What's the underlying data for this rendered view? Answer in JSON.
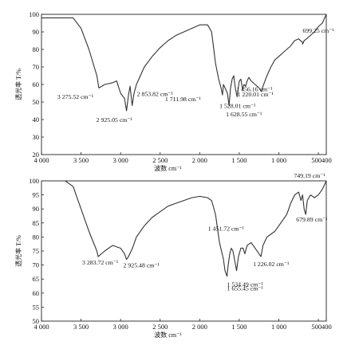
{
  "chart_data": [
    {
      "type": "line",
      "xlabel": "波数 cm⁻¹",
      "ylabel": "透光率 T/%",
      "xlim": [
        4000,
        400
      ],
      "ylim": [
        20,
        100
      ],
      "xticks": [
        4000,
        3500,
        3000,
        2500,
        2000,
        1500,
        1000,
        500,
        400
      ],
      "xtick_labels": [
        "4 000",
        "3 500",
        "3 000",
        "2 500",
        "2 000",
        "1 500",
        "1 000",
        "500",
        "400"
      ],
      "yticks": [
        20,
        30,
        40,
        50,
        60,
        70,
        80,
        90,
        100
      ],
      "series": [
        {
          "x": [
            4000,
            3700,
            3600,
            3500,
            3400,
            3300,
            3275,
            3200,
            3100,
            3050,
            3000,
            2950,
            2925,
            2900,
            2880,
            2854,
            2830,
            2800,
            2700,
            2600,
            2500,
            2400,
            2300,
            2200,
            2100,
            2000,
            1950,
            1900,
            1850,
            1800,
            1760,
            1730,
            1712,
            1700,
            1680,
            1650,
            1629,
            1610,
            1590,
            1570,
            1550,
            1528,
            1500,
            1480,
            1457,
            1440,
            1420,
            1400,
            1380,
            1350,
            1300,
            1250,
            1220,
            1200,
            1150,
            1100,
            1050,
            1000,
            950,
            900,
            850,
            800,
            750,
            700,
            699,
            680,
            650,
            600,
            550,
            500,
            450,
            400
          ],
          "y": [
            98,
            98,
            98,
            92,
            80,
            65,
            58,
            60,
            61,
            62,
            55,
            52,
            45,
            54,
            59,
            48,
            55,
            60,
            70,
            76,
            81,
            85,
            88,
            90,
            92,
            94,
            94,
            94,
            90,
            72,
            63,
            58,
            54,
            60,
            58,
            55,
            48,
            58,
            63,
            65,
            58,
            53,
            62,
            63,
            57,
            60,
            59,
            62,
            64,
            62,
            60,
            58,
            56,
            59,
            65,
            70,
            74,
            76,
            78,
            80,
            82,
            85,
            86,
            84,
            83,
            85,
            86,
            88,
            90,
            93,
            95,
            100
          ]
        }
      ],
      "annotations": [
        {
          "x": 3275.52,
          "text": "3 275.52 cm⁻¹"
        },
        {
          "x": 2925.05,
          "text": "2 925.05 cm⁻¹"
        },
        {
          "x": 2853.82,
          "text": "2 853.82 cm⁻¹"
        },
        {
          "x": 1711.98,
          "text": "1 711.98 cm⁻¹"
        },
        {
          "x": 1628.55,
          "text": "1 628.55 cm⁻¹"
        },
        {
          "x": 1528.01,
          "text": "1 528.01 cm⁻¹"
        },
        {
          "x": 1456.16,
          "text": "1 456.16 cm⁻¹"
        },
        {
          "x": 1220.01,
          "text": "1 220.01 cm⁻¹"
        },
        {
          "x": 699.25,
          "text": "699.25 cm⁻¹"
        }
      ]
    },
    {
      "type": "line",
      "xlabel": "波数 cm⁻¹",
      "ylabel": "透光率 T/%",
      "xlim": [
        4000,
        400
      ],
      "ylim": [
        50,
        100
      ],
      "xticks": [
        4000,
        3500,
        3000,
        2500,
        2000,
        1500,
        1000,
        500,
        400
      ],
      "xtick_labels": [
        "4 000",
        "3 500",
        "3 000",
        "2 500",
        "2 000",
        "1 500",
        "1 000",
        "500",
        "400"
      ],
      "yticks": [
        50,
        55,
        60,
        65,
        70,
        75,
        80,
        85,
        90,
        95,
        100
      ],
      "series": [
        {
          "x": [
            4000,
            3700,
            3650,
            3600,
            3500,
            3400,
            3300,
            3284,
            3200,
            3100,
            3000,
            2950,
            2925,
            2900,
            2850,
            2800,
            2700,
            2600,
            2500,
            2400,
            2300,
            2200,
            2100,
            2000,
            1900,
            1850,
            1800,
            1750,
            1700,
            1680,
            1655,
            1640,
            1620,
            1600,
            1580,
            1560,
            1534,
            1510,
            1480,
            1452,
            1430,
            1400,
            1350,
            1300,
            1250,
            1226,
            1200,
            1150,
            1100,
            1050,
            1000,
            950,
            900,
            850,
            800,
            749,
            720,
            700,
            680,
            660,
            640,
            600,
            550,
            500,
            450,
            400
          ],
          "y": [
            100,
            100,
            99,
            98,
            90,
            82,
            75,
            73,
            75,
            77,
            76,
            74,
            72,
            73,
            76,
            80,
            84,
            87,
            89,
            91,
            92,
            93,
            94,
            94.5,
            94,
            93,
            88,
            78,
            72,
            68,
            66,
            70,
            74,
            76,
            75,
            72,
            68,
            73,
            76,
            76,
            74,
            77,
            78,
            76,
            74,
            73,
            77,
            80,
            81,
            82,
            84,
            86,
            88,
            92,
            95,
            96,
            93,
            95,
            90,
            88,
            93,
            95,
            94,
            95,
            97,
            100
          ]
        }
      ],
      "annotations": [
        {
          "x": 3283.72,
          "text": "3 283.72 cm⁻¹"
        },
        {
          "x": 2925.48,
          "text": "2 925.48 cm⁻¹"
        },
        {
          "x": 1655.45,
          "text": "1 655.45 cm⁻¹"
        },
        {
          "x": 1534.49,
          "text": "1 534.49 cm⁻¹"
        },
        {
          "x": 1451.72,
          "text": "1 451.72 cm⁻¹"
        },
        {
          "x": 1226.02,
          "text": "1 226.02 cm⁻¹"
        },
        {
          "x": 749.19,
          "text": "749.19 cm⁻¹"
        },
        {
          "x": 679.89,
          "text": "679.89 cm⁻¹"
        }
      ]
    }
  ]
}
